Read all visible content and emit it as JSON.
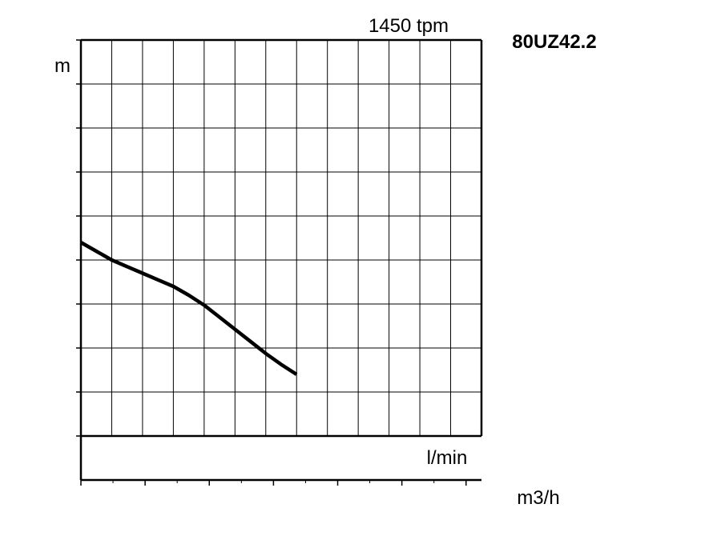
{
  "chart_data": {
    "type": "line",
    "title": "1450 tpm",
    "model_label": "80UZ42.2",
    "ylabel": "m",
    "ylim": [
      -2,
      18
    ],
    "yticks": [
      "0",
      "4",
      "8",
      "12",
      "16"
    ],
    "x_lpm_ticks": [
      "400",
      "800",
      "1200",
      "1600",
      "2000"
    ],
    "x_lpm_unit": "l/min",
    "xlim_lpm": [
      0,
      2600
    ],
    "x_m3h_ticks": [
      "0",
      "25",
      "50",
      "75",
      "100",
      "125",
      "150"
    ],
    "x_m3h_unit": "m3/h",
    "xlim_m3h": [
      0,
      156
    ],
    "grid": true,
    "series": [
      {
        "x_lpm": [
          0,
          100,
          200,
          300,
          400,
          500,
          600,
          700,
          800,
          900,
          1000,
          1100,
          1200,
          1300,
          1400
        ],
        "values": [
          8.8,
          8.4,
          8.0,
          7.7,
          7.4,
          7.1,
          6.8,
          6.4,
          5.95,
          5.4,
          4.85,
          4.3,
          3.75,
          3.25,
          2.8
        ]
      }
    ],
    "color": "#000000"
  }
}
